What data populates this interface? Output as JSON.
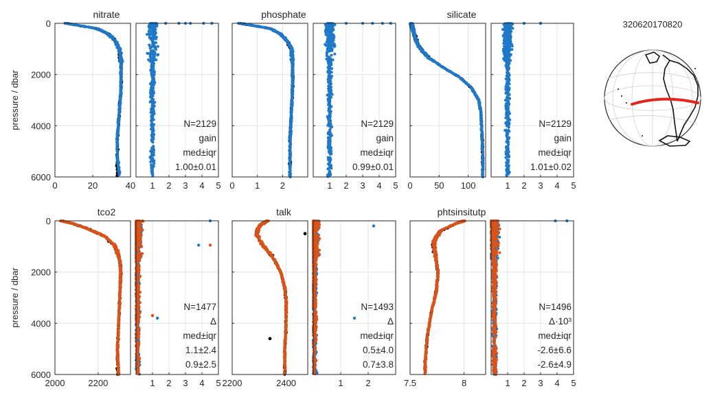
{
  "figure": {
    "map_title": "320620170820",
    "colors": {
      "black": "#000000",
      "blue": "#1f78c8",
      "orange": "#d95319",
      "red": "#e8231a"
    }
  },
  "chart_data": [
    {
      "type": "scatter",
      "title": "nitrate",
      "ylabel": "pressure / dbar",
      "ylim": [
        0,
        6000
      ],
      "yticks": [
        "0",
        "2000",
        "4000",
        "6000"
      ],
      "xlim": [
        0,
        40
      ],
      "xticks": [
        0,
        20,
        40
      ],
      "xticklabels": [
        "0",
        "20",
        "40"
      ],
      "series": [
        {
          "color": "#000000",
          "x": [
            6,
            14,
            22,
            28,
            32,
            34,
            35,
            35,
            34,
            33,
            33,
            33
          ],
          "y": [
            0,
            100,
            200,
            400,
            700,
            1000,
            1500,
            2500,
            3500,
            4500,
            5200,
            5400
          ]
        },
        {
          "color": "#1f78c8",
          "x": [
            6,
            14,
            22,
            28,
            32,
            34,
            35,
            35,
            34,
            33,
            33,
            34,
            34
          ],
          "y": [
            0,
            100,
            200,
            400,
            700,
            1000,
            1500,
            2500,
            3500,
            4500,
            5200,
            5800,
            6000
          ]
        }
      ],
      "ratio": {
        "xlim": [
          0,
          5
        ],
        "xticks": [
          1,
          2,
          3,
          4,
          5
        ],
        "xticklabels": [
          "1",
          "2",
          "3",
          "4",
          "5"
        ],
        "series": [
          {
            "color": "#1f78c8",
            "x": [
              1.0,
              1.0,
              1.0,
              1.0,
              1.0,
              1.0
            ],
            "y": [
              0,
              1000,
              2000,
              3000,
              4000,
              6000
            ]
          }
        ],
        "outliers": [
          {
            "color": "#1f78c8",
            "x": [
              1.8,
              2.6,
              3.0,
              3.3,
              4.1,
              4.6
            ],
            "y": [
              0,
              0,
              0,
              0,
              0,
              0
            ]
          }
        ],
        "annotation": [
          "N=2129",
          "gain",
          "med±iqr",
          "1.00±0.01"
        ]
      }
    },
    {
      "type": "scatter",
      "title": "phosphate",
      "ylim": [
        0,
        6000
      ],
      "xlim": [
        0,
        3
      ],
      "xticks": [
        0,
        1,
        2
      ],
      "xticklabels": [
        "0",
        "1",
        "2"
      ],
      "series": [
        {
          "color": "#000000",
          "x": [
            0.3,
            0.9,
            1.5,
            1.9,
            2.2,
            2.35,
            2.4,
            2.4,
            2.35,
            2.3,
            2.3
          ],
          "y": [
            0,
            100,
            200,
            400,
            700,
            1000,
            1500,
            2500,
            3500,
            4500,
            5300
          ]
        },
        {
          "color": "#1f78c8",
          "x": [
            0.3,
            0.9,
            1.5,
            1.9,
            2.2,
            2.35,
            2.4,
            2.4,
            2.35,
            2.3,
            2.3,
            2.3
          ],
          "y": [
            0,
            100,
            200,
            400,
            700,
            1000,
            1500,
            2500,
            3500,
            4500,
            5300,
            6000
          ]
        }
      ],
      "ratio": {
        "xlim": [
          0,
          5
        ],
        "xticks": [
          1,
          2,
          3,
          4,
          5
        ],
        "xticklabels": [
          "1",
          "2",
          "3",
          "4",
          "5"
        ],
        "series": [
          {
            "color": "#1f78c8",
            "x": [
              1.0,
              1.0,
              1.0,
              1.0,
              1.0,
              1.0
            ],
            "y": [
              0,
              1000,
              2000,
              3000,
              4000,
              6000
            ]
          }
        ],
        "outliers": [
          {
            "color": "#1f78c8",
            "x": [
              2.0,
              3.0,
              3.6,
              4.2,
              4.7
            ],
            "y": [
              0,
              0,
              0,
              0,
              0
            ]
          }
        ],
        "annotation": [
          "N=2129",
          "gain",
          "med±iqr",
          "0.99±0.01"
        ]
      }
    },
    {
      "type": "scatter",
      "title": "silicate",
      "ylim": [
        0,
        6000
      ],
      "xlim": [
        0,
        130
      ],
      "xticks": [
        0,
        50,
        100
      ],
      "xticklabels": [
        "0",
        "50",
        "100"
      ],
      "series": [
        {
          "color": "#000000",
          "x": [
            2,
            4,
            8,
            15,
            30,
            55,
            85,
            105,
            118,
            122,
            124,
            125
          ],
          "y": [
            0,
            200,
            500,
            900,
            1300,
            1700,
            2100,
            2500,
            3000,
            3500,
            4500,
            5500
          ]
        },
        {
          "color": "#1f78c8",
          "x": [
            2,
            4,
            8,
            15,
            30,
            55,
            85,
            105,
            118,
            122,
            124,
            125,
            125
          ],
          "y": [
            0,
            200,
            500,
            900,
            1300,
            1700,
            2100,
            2500,
            3000,
            3500,
            4500,
            5500,
            6000
          ]
        }
      ],
      "ratio": {
        "xlim": [
          0,
          5
        ],
        "xticks": [
          1,
          2,
          3,
          4,
          5
        ],
        "xticklabels": [
          "1",
          "2",
          "3",
          "4",
          "5"
        ],
        "series": [
          {
            "color": "#1f78c8",
            "x": [
              1.0,
              1.0,
              1.0,
              1.0,
              1.0,
              1.0
            ],
            "y": [
              0,
              1000,
              2000,
              3000,
              4000,
              6000
            ]
          }
        ],
        "outliers": [
          {
            "color": "#1f78c8",
            "x": [
              2.0,
              3.0,
              3.0
            ],
            "y": [
              0,
              0,
              0
            ]
          }
        ],
        "annotation": [
          "N=2129",
          "gain",
          "med±iqr",
          "1.01±0.02"
        ]
      }
    },
    {
      "type": "scatter",
      "title": "tco2",
      "ylabel": "pressure / dbar",
      "ylim": [
        0,
        6000
      ],
      "yticks": [
        "0",
        "2000",
        "4000",
        "6000"
      ],
      "xlim": [
        2000,
        2350
      ],
      "xticks": [
        2000,
        2200
      ],
      "xticklabels": [
        "2000",
        "2200"
      ],
      "series": [
        {
          "color": "#000000",
          "x": [
            2030,
            2080,
            2150,
            2230,
            2280,
            2300,
            2305,
            2300,
            2295,
            2290,
            2290
          ],
          "y": [
            0,
            100,
            300,
            600,
            1000,
            1500,
            2000,
            3000,
            4000,
            5000,
            5300
          ]
        },
        {
          "color": "#d95319",
          "x": [
            2030,
            2080,
            2150,
            2230,
            2280,
            2300,
            2305,
            2300,
            2295,
            2290,
            2290,
            2295
          ],
          "y": [
            0,
            100,
            300,
            600,
            1000,
            1500,
            2000,
            3000,
            4000,
            5000,
            5300,
            6000
          ]
        }
      ],
      "ratio": {
        "xlim": [
          0,
          5
        ],
        "xticks": [
          1,
          2,
          3,
          4,
          5
        ],
        "xticklabels": [
          "1",
          "2",
          "3",
          "4",
          "5"
        ],
        "series": [
          {
            "color": "#1f78c8",
            "x": [
              0.1,
              0.1,
              0.1,
              0.1,
              0.1,
              0.1
            ],
            "y": [
              0,
              1000,
              2000,
              3000,
              4000,
              6000
            ]
          },
          {
            "color": "#d95319",
            "x": [
              0.1,
              0.1,
              0.1,
              0.1,
              0.1,
              0.1
            ],
            "y": [
              0,
              1000,
              2000,
              3000,
              4000,
              6000
            ]
          }
        ],
        "outliers": [
          {
            "color": "#1f78c8",
            "x": [
              3.8,
              4.5,
              1.3
            ],
            "y": [
              950,
              0,
              3800
            ]
          },
          {
            "color": "#d95319",
            "x": [
              4.5,
              1.0
            ],
            "y": [
              950,
              3700
            ]
          }
        ],
        "annotation": [
          "N=1477",
          "Δ",
          "med±iqr",
          "1.1±2.4",
          "0.9±2.5"
        ]
      }
    },
    {
      "type": "scatter",
      "title": "talk",
      "ylim": [
        0,
        6000
      ],
      "xlim": [
        2200,
        2480
      ],
      "xticks": [
        2200,
        2400
      ],
      "xticklabels": [
        "2200",
        "2400"
      ],
      "series": [
        {
          "color": "#000000",
          "x": [
            2330,
            2300,
            2290,
            2310,
            2350,
            2380,
            2395,
            2400,
            2400,
            2395,
            2395
          ],
          "y": [
            0,
            200,
            500,
            900,
            1400,
            2000,
            2600,
            3200,
            4000,
            5000,
            5800
          ],
          "extra": [
            [
              2340,
              4600
            ],
            [
              2470,
              500
            ]
          ]
        },
        {
          "color": "#d95319",
          "x": [
            2330,
            2300,
            2290,
            2310,
            2350,
            2380,
            2395,
            2400,
            2400,
            2395,
            2395,
            2395
          ],
          "y": [
            0,
            200,
            500,
            900,
            1400,
            2000,
            2600,
            3200,
            4000,
            5000,
            5800,
            6000
          ]
        }
      ],
      "ratio": {
        "xlim": [
          0,
          3
        ],
        "xticks": [
          1,
          2
        ],
        "xticklabels": [
          "1",
          "2"
        ],
        "series": [
          {
            "color": "#1f78c8",
            "x": [
              0.05,
              0.05,
              0.05,
              0.05,
              0.05,
              0.05
            ],
            "y": [
              0,
              1000,
              2000,
              3000,
              4000,
              6000
            ]
          },
          {
            "color": "#d95319",
            "x": [
              0.05,
              0.05,
              0.05,
              0.05,
              0.05,
              0.05
            ],
            "y": [
              0,
              1000,
              2000,
              3000,
              4000,
              6000
            ]
          }
        ],
        "outliers": [
          {
            "color": "#1f78c8",
            "x": [
              1.5,
              2.2
            ],
            "y": [
              3800,
              200
            ]
          }
        ],
        "annotation": [
          "N=1493",
          "Δ",
          "med±iqr",
          "0.5±4.0",
          "0.7±3.8"
        ]
      }
    },
    {
      "type": "scatter",
      "title": "phtsinsitutp",
      "ylim": [
        0,
        6000
      ],
      "xlim": [
        7.5,
        8.2
      ],
      "xticks": [
        7.5,
        8
      ],
      "xticklabels": [
        "7.5",
        "8"
      ],
      "series": [
        {
          "color": "#000000",
          "x": [
            8.0,
            7.9,
            7.78,
            7.72,
            7.73,
            7.76,
            7.74,
            7.7,
            7.66,
            7.64,
            7.64
          ],
          "y": [
            0,
            150,
            400,
            800,
            1300,
            2000,
            2800,
            3500,
            4500,
            5500,
            6000
          ]
        },
        {
          "color": "#d95319",
          "x": [
            8.0,
            7.9,
            7.78,
            7.72,
            7.73,
            7.76,
            7.74,
            7.7,
            7.66,
            7.64,
            7.64
          ],
          "y": [
            0,
            150,
            400,
            800,
            1300,
            2000,
            2800,
            3500,
            4500,
            5500,
            6000
          ]
        }
      ],
      "ratio": {
        "xlim": [
          0,
          5
        ],
        "xticks": [
          1,
          2,
          3,
          4,
          5
        ],
        "xticklabels": [
          "1",
          "2",
          "3",
          "4",
          "5"
        ],
        "series": [
          {
            "color": "#1f78c8",
            "x": [
              0.2,
              0.2,
              0.2,
              0.2,
              0.2,
              0.2
            ],
            "y": [
              0,
              1000,
              2000,
              3000,
              4000,
              6000
            ]
          },
          {
            "color": "#d95319",
            "x": [
              0.2,
              0.2,
              0.2,
              0.2,
              0.2,
              0.2
            ],
            "y": [
              0,
              1000,
              2000,
              3000,
              4000,
              6000
            ]
          }
        ],
        "outliers": [
          {
            "color": "#1f78c8",
            "x": [
              3.9,
              4.6
            ],
            "y": [
              0,
              0
            ]
          }
        ],
        "annotation": [
          "N=1496",
          "Δ·10³",
          "med±iqr",
          "-2.6±6.6",
          "-2.6±4.9"
        ]
      }
    }
  ]
}
